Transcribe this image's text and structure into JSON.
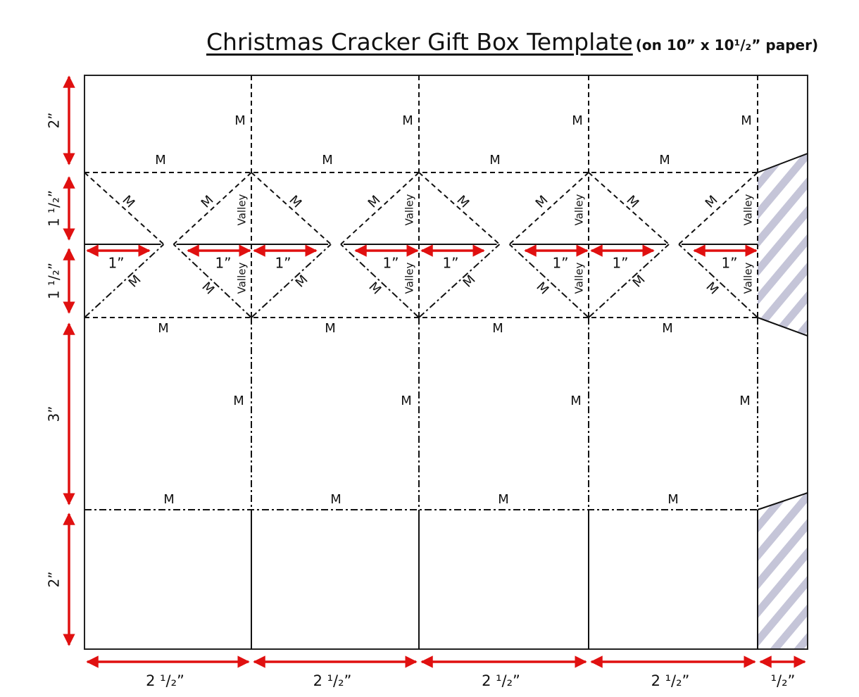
{
  "title": "Christmas Cracker Gift Box Template",
  "subtitle": "(on 10” x 10¹/₂” paper)",
  "heights": [
    "2”",
    "1 ¹/₂”",
    "1 ¹/₂”",
    "3”",
    "2”"
  ],
  "columns": [
    {
      "m_top": "M",
      "m_flap": "M",
      "m_diag_upper": [
        "M",
        "M"
      ],
      "valley_upper": "Valley",
      "inch_labels": [
        "1”",
        "1”"
      ],
      "valley_lower": "Valley",
      "m_diag_lower": [
        "M",
        "M"
      ],
      "m_mid": "M",
      "m_side": "M",
      "m_base": "M",
      "width": "2 ¹/₂”"
    },
    {
      "m_top": "M",
      "m_flap": "M",
      "m_diag_upper": [
        "M",
        "M"
      ],
      "valley_upper": "Valley",
      "inch_labels": [
        "1”",
        "1”"
      ],
      "valley_lower": "Valley",
      "m_diag_lower": [
        "M",
        "M"
      ],
      "m_mid": "M",
      "m_side": "M",
      "m_base": "M",
      "width": "2 ¹/₂”"
    },
    {
      "m_top": "M",
      "m_flap": "M",
      "m_diag_upper": [
        "M",
        "M"
      ],
      "valley_upper": "Valley",
      "inch_labels": [
        "1”",
        "1”"
      ],
      "valley_lower": "Valley",
      "m_diag_lower": [
        "M",
        "M"
      ],
      "m_mid": "M",
      "m_side": "M",
      "m_base": "M",
      "width": "2 ¹/₂”"
    },
    {
      "m_top": "M",
      "m_flap": "M",
      "m_diag_upper": [
        "M",
        "M"
      ],
      "valley_upper": "Valley",
      "inch_labels": [
        "1”",
        "1”"
      ],
      "valley_lower": "Valley",
      "m_diag_lower": [
        "M",
        "M"
      ],
      "m_mid": "M",
      "m_side": "M",
      "m_base": "M",
      "width": "2 ¹/₂”"
    }
  ],
  "tab_width": "¹/₂”"
}
